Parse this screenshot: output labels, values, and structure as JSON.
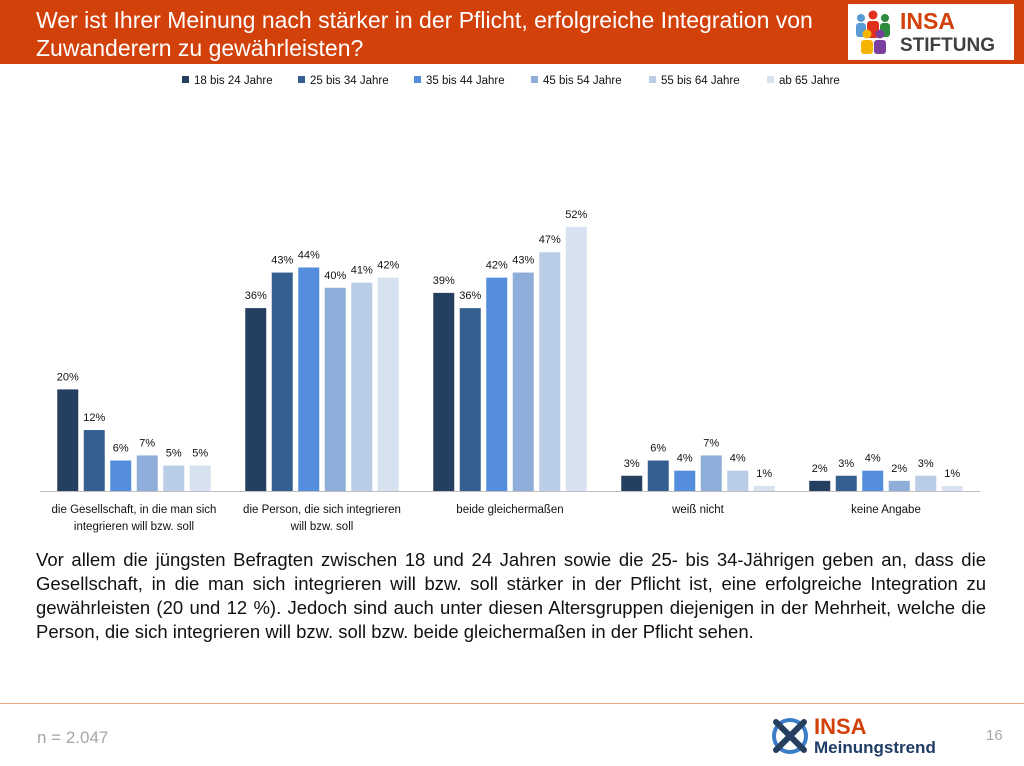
{
  "slide": {
    "title": "Wer ist Ihrer Meinung nach stärker in der Pflicht, erfolgreiche Integration von Zuwanderern zu gewährleisten?",
    "summary": "Vor allem die jüngsten Befragten zwischen 18 und 24 Jahren sowie die 25- bis 34-Jährigen geben an, dass die Gesellschaft, in die man sich integrieren will bzw. soll stärker in der Pflicht ist, eine erfolgreiche Integration zu gewährleisten (20 und 12 %). Jedoch sind auch unter diesen Altersgruppen diejenigen in der Mehrheit, welche die Person, die sich integrieren will bzw. soll bzw. beide gleichermaßen in der Pflicht sehen.",
    "sample_size": "n = 2.047",
    "page_number": "16"
  },
  "logos": {
    "top": {
      "word1": "INSA",
      "word2": "STIFTUNG"
    },
    "bottom": {
      "word1": "INSA",
      "word2": "Meinungstrend"
    }
  },
  "colors": {
    "header": "#d3410b",
    "series": [
      "#243f60",
      "#355f91",
      "#538ddc",
      "#8eadd9",
      "#b9cde6",
      "#d6e2f0"
    ]
  },
  "chart_data": {
    "type": "bar",
    "categories": [
      [
        "die Gesellschaft, in die man sich",
        "integrieren will bzw. soll"
      ],
      [
        "die Person, die sich integrieren",
        "will bzw. soll"
      ],
      [
        "beide gleichermaßen"
      ],
      [
        "weiß nicht"
      ],
      [
        "keine Angabe"
      ]
    ],
    "series": [
      {
        "name": "18 bis 24 Jahre",
        "values": [
          20,
          36,
          39,
          3,
          2
        ]
      },
      {
        "name": "25 bis 34 Jahre",
        "values": [
          12,
          43,
          36,
          6,
          3
        ]
      },
      {
        "name": "35 bis 44 Jahre",
        "values": [
          6,
          44,
          42,
          4,
          4
        ]
      },
      {
        "name": "45 bis 54 Jahre",
        "values": [
          7,
          40,
          43,
          7,
          2
        ]
      },
      {
        "name": "55 bis 64 Jahre",
        "values": [
          5,
          41,
          47,
          4,
          3
        ]
      },
      {
        "name": "ab 65 Jahre",
        "values": [
          5,
          42,
          52,
          1,
          1
        ]
      }
    ],
    "value_suffix": "%",
    "ylim": [
      0,
      55
    ],
    "legend_position": "top",
    "grid": false
  }
}
